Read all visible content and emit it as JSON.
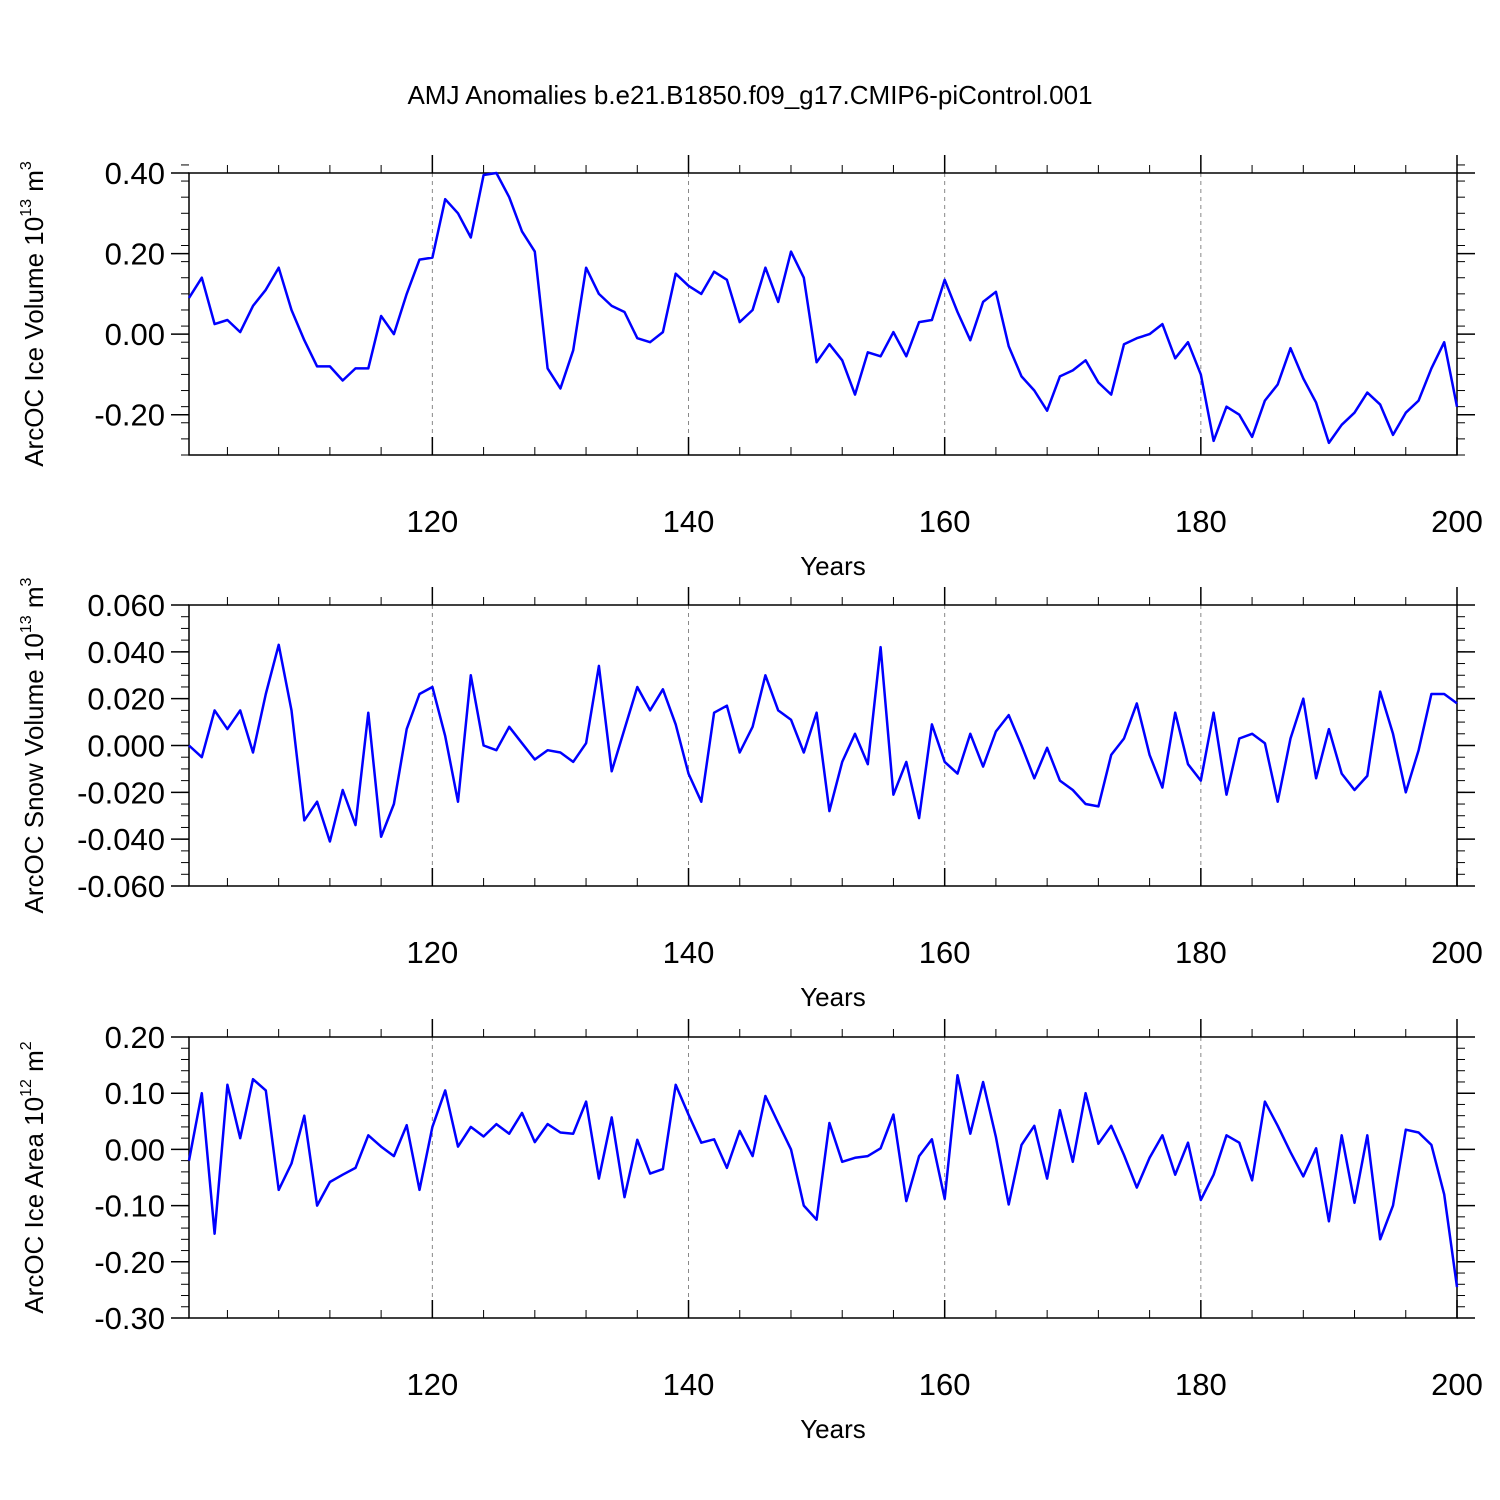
{
  "title": "AMJ Anomalies b.e21.B1850.f09_g17.CMIP6-piControl.001",
  "colors": {
    "series": "#0000ff",
    "axis": "#000000",
    "grid": "#888888"
  },
  "chart_data": [
    {
      "type": "line",
      "name": "ice-volume",
      "ylabel": "ArcOC Ice Volume 10",
      "ylabel_exp": "13",
      "ylabel_unit": " m",
      "ylabel_unit_exp": "3",
      "xlabel": "Years",
      "xlim": [
        101,
        200
      ],
      "ylim": [
        -0.3,
        0.4
      ],
      "x_ticks": [
        120,
        140,
        160,
        180,
        200
      ],
      "x_tick_labels": [
        "120",
        "140",
        "160",
        "180",
        "200"
      ],
      "y_ticks": [
        0.4,
        0.2,
        0.0,
        -0.2
      ],
      "y_tick_labels": [
        "0.40",
        "0.20",
        "0.00",
        "-0.20"
      ],
      "y_minor_step": 0.04,
      "grid_x": [
        120,
        140,
        160,
        180
      ],
      "x": [
        101,
        102,
        103,
        104,
        105,
        106,
        107,
        108,
        109,
        110,
        111,
        112,
        113,
        114,
        115,
        116,
        117,
        118,
        119,
        120,
        121,
        122,
        123,
        124,
        125,
        126,
        127,
        128,
        129,
        130,
        131,
        132,
        133,
        134,
        135,
        136,
        137,
        138,
        139,
        140,
        141,
        142,
        143,
        144,
        145,
        146,
        147,
        148,
        149,
        150,
        151,
        152,
        153,
        154,
        155,
        156,
        157,
        158,
        159,
        160,
        161,
        162,
        163,
        164,
        165,
        166,
        167,
        168,
        169,
        170,
        171,
        172,
        173,
        174,
        175,
        176,
        177,
        178,
        179,
        180,
        181,
        182,
        183,
        184,
        185,
        186,
        187,
        188,
        189,
        190,
        191,
        192,
        193,
        194,
        195,
        196,
        197,
        198,
        199,
        200
      ],
      "values": [
        0.09,
        0.14,
        0.025,
        0.035,
        0.005,
        0.07,
        0.11,
        0.165,
        0.06,
        -0.015,
        -0.08,
        -0.08,
        -0.115,
        -0.085,
        -0.085,
        0.045,
        0.0,
        0.1,
        0.185,
        0.19,
        0.335,
        0.3,
        0.24,
        0.395,
        0.4,
        0.34,
        0.255,
        0.205,
        -0.085,
        -0.135,
        -0.04,
        0.165,
        0.1,
        0.07,
        0.055,
        -0.01,
        -0.02,
        0.005,
        0.15,
        0.12,
        0.1,
        0.155,
        0.135,
        0.03,
        0.06,
        0.165,
        0.08,
        0.205,
        0.14,
        -0.07,
        -0.025,
        -0.065,
        -0.15,
        -0.045,
        -0.055,
        0.005,
        -0.055,
        0.03,
        0.035,
        0.135,
        0.055,
        -0.015,
        0.08,
        0.105,
        -0.03,
        -0.105,
        -0.14,
        -0.19,
        -0.105,
        -0.09,
        -0.065,
        -0.12,
        -0.15,
        -0.025,
        -0.01,
        0.0,
        0.025,
        -0.06,
        -0.02,
        -0.1,
        -0.265,
        -0.18,
        -0.2,
        -0.255,
        -0.165,
        -0.125,
        -0.035,
        -0.11,
        -0.17,
        -0.27,
        -0.225,
        -0.195,
        -0.145,
        -0.175,
        -0.25,
        -0.195,
        -0.165,
        -0.085,
        -0.02,
        -0.18
      ]
    },
    {
      "type": "line",
      "name": "snow-volume",
      "ylabel": "ArcOC Snow Volume 10",
      "ylabel_exp": "13",
      "ylabel_unit": " m",
      "ylabel_unit_exp": "3",
      "xlabel": "Years",
      "xlim": [
        101,
        200
      ],
      "ylim": [
        -0.06,
        0.06
      ],
      "x_ticks": [
        120,
        140,
        160,
        180,
        200
      ],
      "x_tick_labels": [
        "120",
        "140",
        "160",
        "180",
        "200"
      ],
      "y_ticks": [
        0.06,
        0.04,
        0.02,
        0.0,
        -0.02,
        -0.04,
        -0.06
      ],
      "y_tick_labels": [
        "0.060",
        "0.040",
        "0.020",
        "0.000",
        "-0.020",
        "-0.040",
        "-0.060"
      ],
      "y_minor_step": 0.005,
      "grid_x": [
        120,
        140,
        160,
        180
      ],
      "x": [
        101,
        102,
        103,
        104,
        105,
        106,
        107,
        108,
        109,
        110,
        111,
        112,
        113,
        114,
        115,
        116,
        117,
        118,
        119,
        120,
        121,
        122,
        123,
        124,
        125,
        126,
        127,
        128,
        129,
        130,
        131,
        132,
        133,
        134,
        135,
        136,
        137,
        138,
        139,
        140,
        141,
        142,
        143,
        144,
        145,
        146,
        147,
        148,
        149,
        150,
        151,
        152,
        153,
        154,
        155,
        156,
        157,
        158,
        159,
        160,
        161,
        162,
        163,
        164,
        165,
        166,
        167,
        168,
        169,
        170,
        171,
        172,
        173,
        174,
        175,
        176,
        177,
        178,
        179,
        180,
        181,
        182,
        183,
        184,
        185,
        186,
        187,
        188,
        189,
        190,
        191,
        192,
        193,
        194,
        195,
        196,
        197,
        198,
        199,
        200
      ],
      "values": [
        0.0,
        -0.005,
        0.015,
        0.007,
        0.015,
        -0.003,
        0.022,
        0.043,
        0.015,
        -0.032,
        -0.024,
        -0.041,
        -0.019,
        -0.034,
        0.014,
        -0.039,
        -0.025,
        0.007,
        0.022,
        0.025,
        0.004,
        -0.024,
        0.03,
        0.0,
        -0.002,
        0.008,
        0.001,
        -0.006,
        -0.002,
        -0.003,
        -0.007,
        0.001,
        0.034,
        -0.011,
        0.007,
        0.025,
        0.015,
        0.024,
        0.009,
        -0.012,
        -0.024,
        0.014,
        0.017,
        -0.003,
        0.008,
        0.03,
        0.015,
        0.011,
        -0.003,
        0.014,
        -0.028,
        -0.007,
        0.005,
        -0.008,
        0.042,
        -0.021,
        -0.007,
        -0.031,
        0.009,
        -0.007,
        -0.012,
        0.005,
        -0.009,
        0.006,
        0.013,
        0.0,
        -0.014,
        -0.001,
        -0.015,
        -0.019,
        -0.025,
        -0.026,
        -0.004,
        0.003,
        0.018,
        -0.004,
        -0.018,
        0.014,
        -0.008,
        -0.015,
        0.014,
        -0.021,
        0.003,
        0.005,
        0.001,
        -0.024,
        0.003,
        0.02,
        -0.014,
        0.007,
        -0.012,
        -0.019,
        -0.013,
        0.023,
        0.005,
        -0.02,
        -0.002,
        0.022,
        0.022,
        0.018
      ]
    },
    {
      "type": "line",
      "name": "ice-area",
      "ylabel": "ArcOC Ice Area 10",
      "ylabel_exp": "12",
      "ylabel_unit": " m",
      "ylabel_unit_exp": "2",
      "xlabel": "Years",
      "xlim": [
        101,
        200
      ],
      "ylim": [
        -0.3,
        0.2
      ],
      "x_ticks": [
        120,
        140,
        160,
        180,
        200
      ],
      "x_tick_labels": [
        "120",
        "140",
        "160",
        "180",
        "200"
      ],
      "y_ticks": [
        0.2,
        0.1,
        0.0,
        -0.1,
        -0.2,
        -0.3
      ],
      "y_tick_labels": [
        "0.20",
        "0.10",
        "0.00",
        "-0.10",
        "-0.20",
        "-0.30"
      ],
      "y_minor_step": 0.02,
      "grid_x": [
        120,
        140,
        160,
        180
      ],
      "x": [
        101,
        102,
        103,
        104,
        105,
        106,
        107,
        108,
        109,
        110,
        111,
        112,
        113,
        114,
        115,
        116,
        117,
        118,
        119,
        120,
        121,
        122,
        123,
        124,
        125,
        126,
        127,
        128,
        129,
        130,
        131,
        132,
        133,
        134,
        135,
        136,
        137,
        138,
        139,
        140,
        141,
        142,
        143,
        144,
        145,
        146,
        147,
        148,
        149,
        150,
        151,
        152,
        153,
        154,
        155,
        156,
        157,
        158,
        159,
        160,
        161,
        162,
        163,
        164,
        165,
        166,
        167,
        168,
        169,
        170,
        171,
        172,
        173,
        174,
        175,
        176,
        177,
        178,
        179,
        180,
        181,
        182,
        183,
        184,
        185,
        186,
        187,
        188,
        189,
        190,
        191,
        192,
        193,
        194,
        195,
        196,
        197,
        198,
        199,
        200
      ],
      "values": [
        -0.02,
        0.1,
        -0.15,
        0.115,
        0.02,
        0.125,
        0.105,
        -0.072,
        -0.025,
        0.06,
        -0.1,
        -0.058,
        -0.045,
        -0.033,
        0.025,
        0.005,
        -0.012,
        0.043,
        -0.072,
        0.04,
        0.105,
        0.005,
        0.04,
        0.023,
        0.045,
        0.028,
        0.065,
        0.013,
        0.045,
        0.03,
        0.028,
        0.085,
        -0.052,
        0.057,
        -0.085,
        0.017,
        -0.043,
        -0.035,
        0.115,
        0.062,
        0.012,
        0.018,
        -0.033,
        0.033,
        -0.012,
        0.095,
        0.047,
        0.0,
        -0.1,
        -0.125,
        0.047,
        -0.022,
        -0.015,
        -0.012,
        0.002,
        0.062,
        -0.092,
        -0.012,
        0.018,
        -0.088,
        0.132,
        0.028,
        0.12,
        0.022,
        -0.098,
        0.008,
        0.042,
        -0.052,
        0.07,
        -0.022,
        0.1,
        0.01,
        0.042,
        -0.01,
        -0.068,
        -0.015,
        0.025,
        -0.045,
        0.012,
        -0.09,
        -0.045,
        0.025,
        0.012,
        -0.055,
        0.085,
        0.042,
        -0.005,
        -0.048,
        0.002,
        -0.128,
        0.025,
        -0.095,
        0.025,
        -0.16,
        -0.1,
        0.035,
        0.03,
        0.008,
        -0.08,
        -0.245
      ]
    }
  ]
}
